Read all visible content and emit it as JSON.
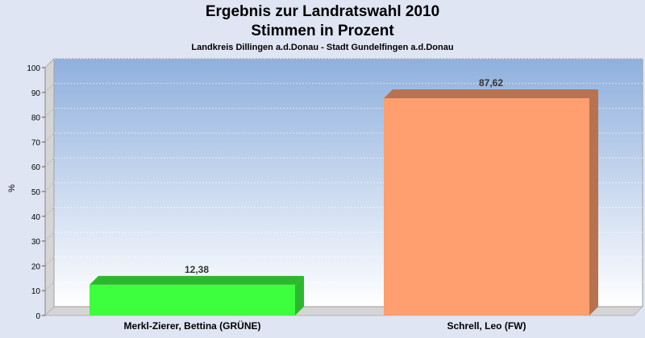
{
  "chart_data": {
    "type": "bar",
    "title": "Ergebnis zur Landratswahl 2010",
    "subtitle": "Stimmen in Prozent",
    "subtitle2": "Landkreis Dillingen a.d.Donau - Stadt Gundelfingen a.d.Donau",
    "ylabel": "%",
    "xlabel": "",
    "ylim": [
      0,
      100
    ],
    "yticks": [
      "0",
      "10",
      "20",
      "30",
      "40",
      "50",
      "60",
      "70",
      "80",
      "90",
      "100"
    ],
    "grid": true,
    "categories": [
      "Merkl-Zierer, Bettina (GRÜNE)",
      "Schrell, Leo (FW)"
    ],
    "values": [
      12.38,
      87.62
    ],
    "value_labels": [
      "12,38",
      "87,62"
    ],
    "colors": [
      "#3dff3d",
      "#ff9e6e"
    ]
  }
}
